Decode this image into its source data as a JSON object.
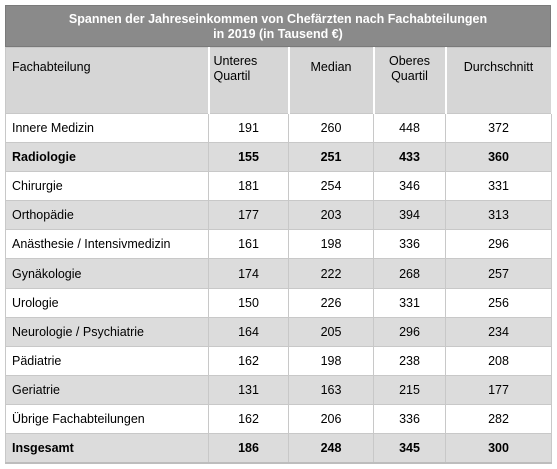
{
  "chart_data": {
    "type": "table",
    "title_line1": "Spannen der Jahreseinkommen von  Chefärzten nach Fachabteilungen",
    "title_line2": "in 2019 (in Tausend €)",
    "columns": {
      "fach": "Fachabteilung",
      "unteres_1": "Unteres",
      "unteres_2": "Quartil",
      "median": "Median",
      "oberes_1": "Oberes",
      "oberes_2": "Quartil",
      "avg": "Durchschnitt"
    },
    "rows": [
      {
        "name": "Innere Medizin",
        "unteres": 191,
        "median": 260,
        "oberes": 448,
        "avg": 372,
        "bold": false
      },
      {
        "name": "Radiologie",
        "unteres": 155,
        "median": 251,
        "oberes": 433,
        "avg": 360,
        "bold": true
      },
      {
        "name": "Chirurgie",
        "unteres": 181,
        "median": 254,
        "oberes": 346,
        "avg": 331,
        "bold": false
      },
      {
        "name": "Orthopädie",
        "unteres": 177,
        "median": 203,
        "oberes": 394,
        "avg": 313,
        "bold": false
      },
      {
        "name": "Anästhesie / Intensivmedizin",
        "unteres": 161,
        "median": 198,
        "oberes": 336,
        "avg": 296,
        "bold": false
      },
      {
        "name": "Gynäkologie",
        "unteres": 174,
        "median": 222,
        "oberes": 268,
        "avg": 257,
        "bold": false
      },
      {
        "name": "Urologie",
        "unteres": 150,
        "median": 226,
        "oberes": 331,
        "avg": 256,
        "bold": false
      },
      {
        "name": "Neurologie / Psychiatrie",
        "unteres": 164,
        "median": 205,
        "oberes": 296,
        "avg": 234,
        "bold": false
      },
      {
        "name": "Pädiatrie",
        "unteres": 162,
        "median": 198,
        "oberes": 238,
        "avg": 208,
        "bold": false
      },
      {
        "name": "Geriatrie",
        "unteres": 131,
        "median": 163,
        "oberes": 215,
        "avg": 177,
        "bold": false
      },
      {
        "name": "Übrige Fachabteilungen",
        "unteres": 162,
        "median": 206,
        "oberes": 336,
        "avg": 282,
        "bold": false
      },
      {
        "name": "Insgesamt",
        "unteres": 186,
        "median": 248,
        "oberes": 345,
        "avg": 300,
        "bold": true
      }
    ]
  }
}
